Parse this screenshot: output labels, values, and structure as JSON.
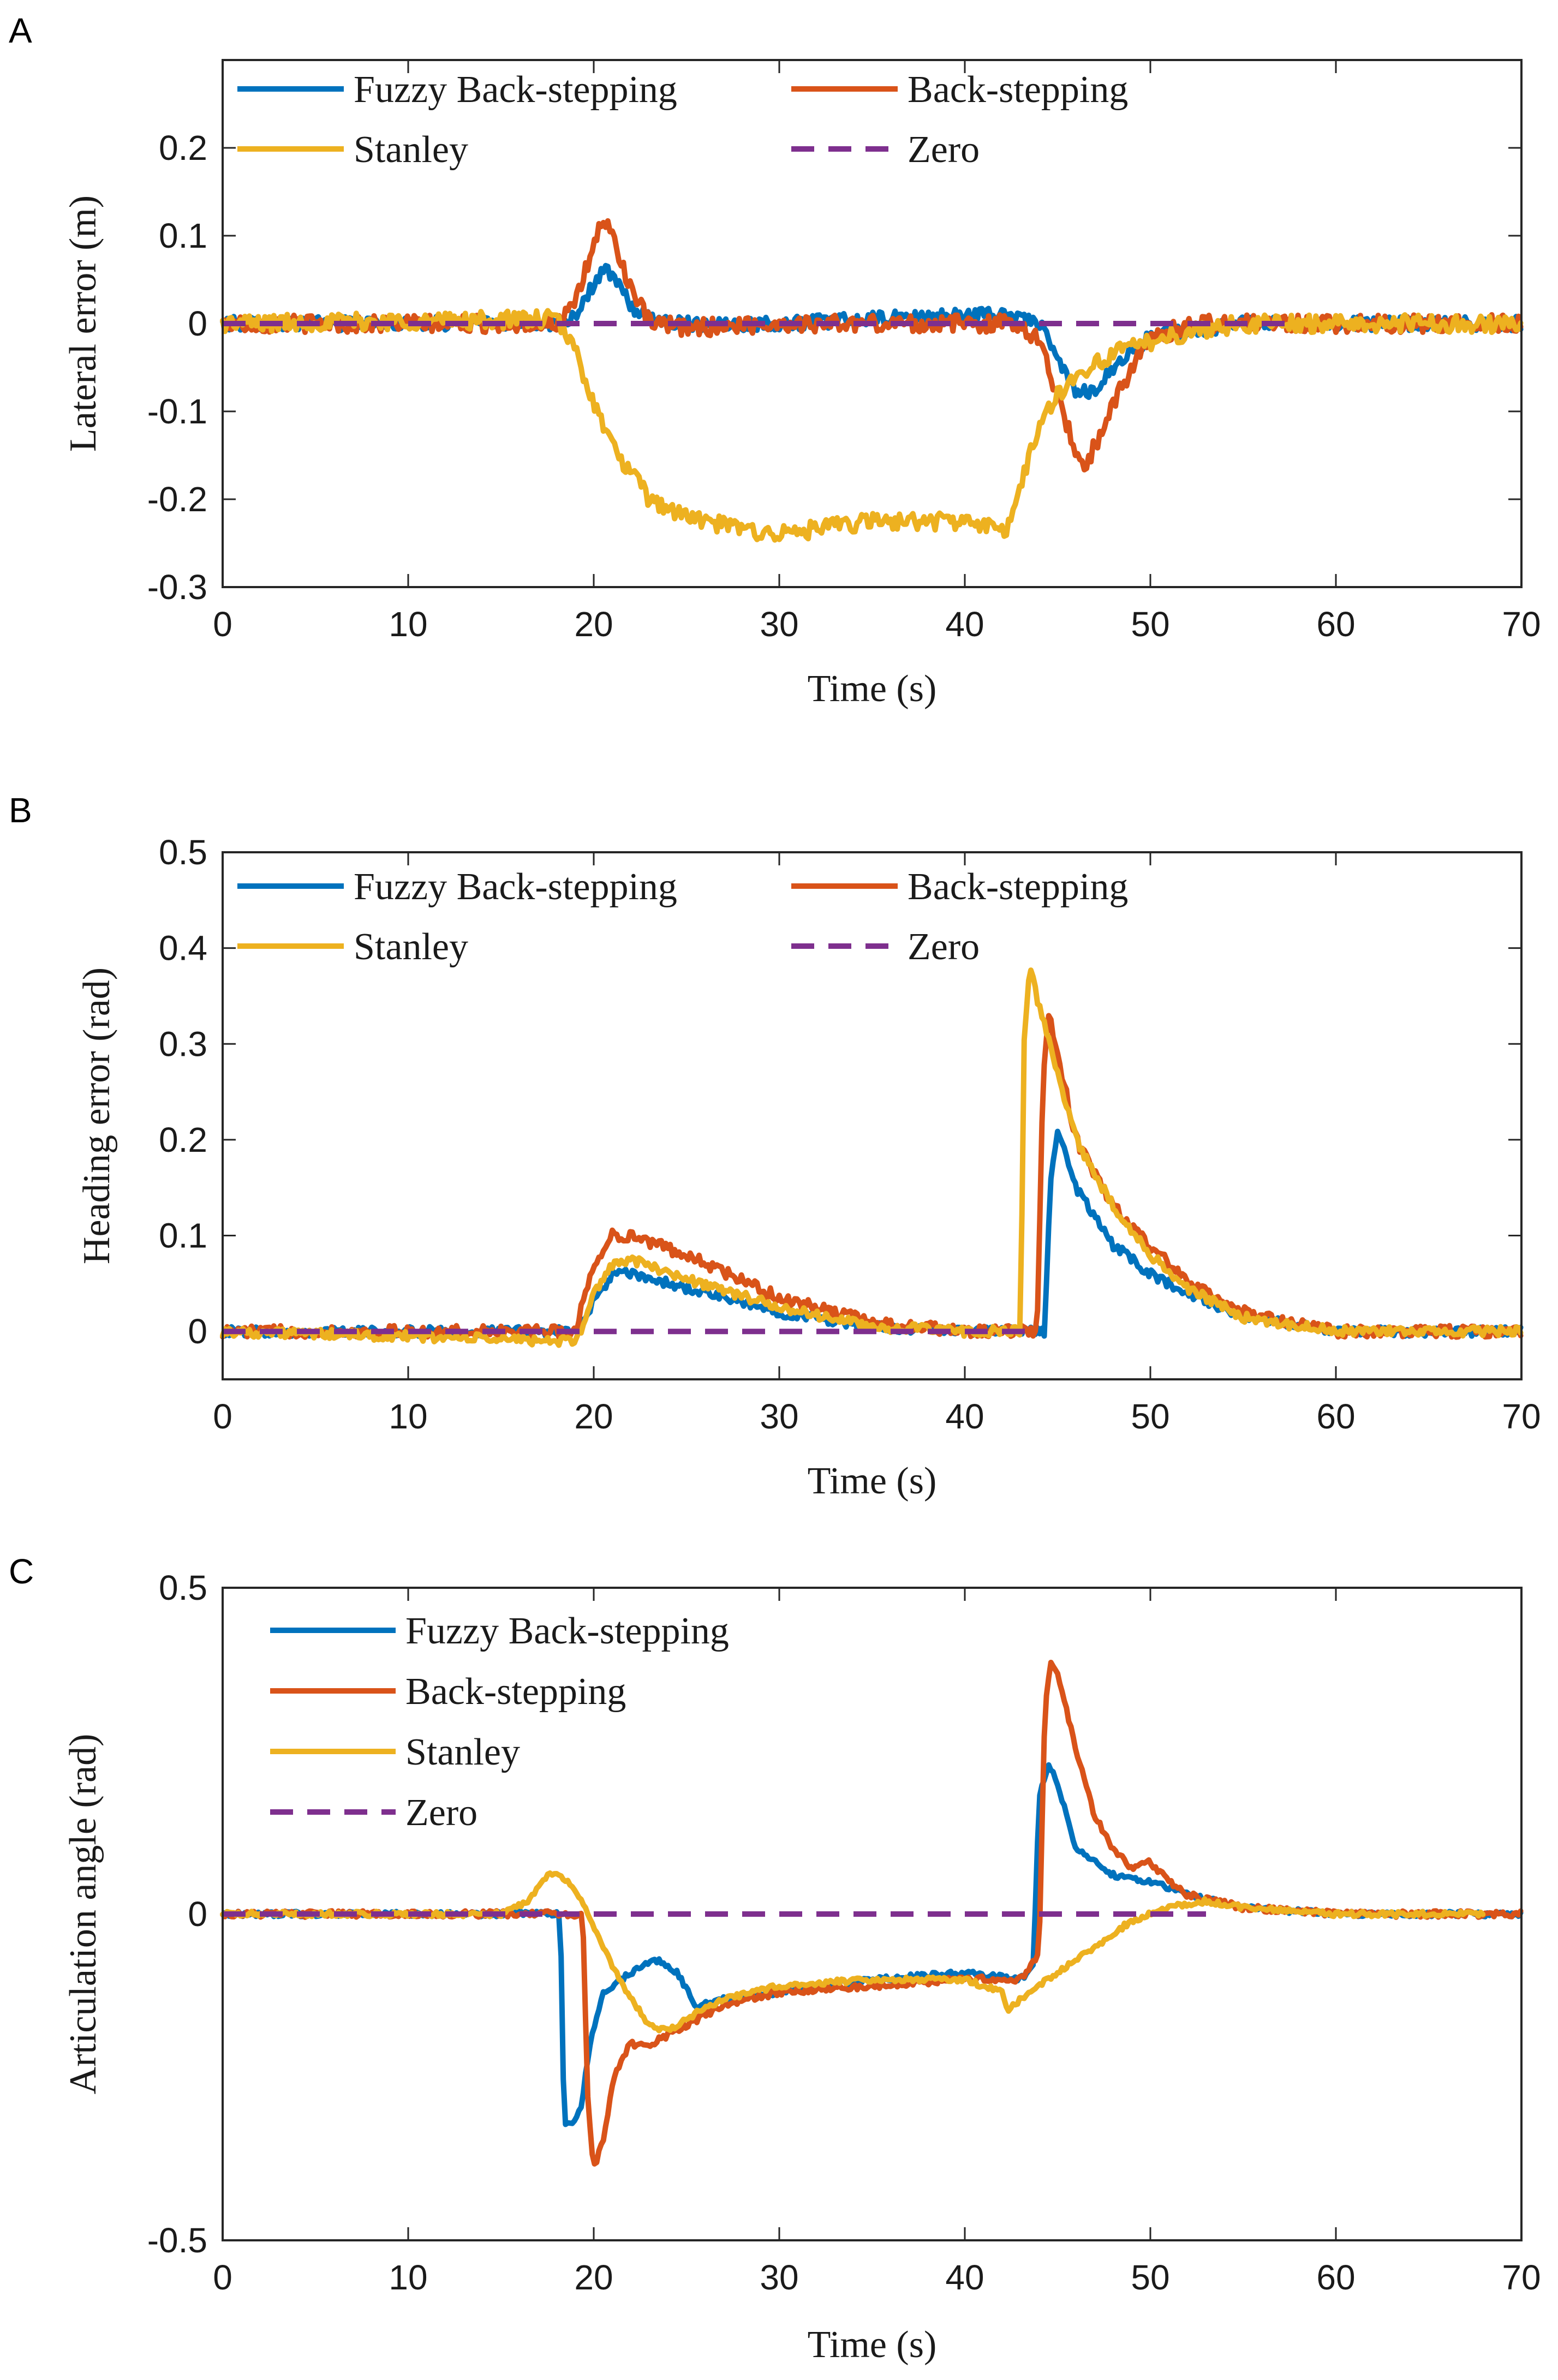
{
  "figure": {
    "panel_letters": [
      "A",
      "B",
      "C"
    ]
  },
  "colors": {
    "fuzzy": "#0072BD",
    "back": "#D95319",
    "stanley": "#EDB120",
    "zero": "#7E2F8E"
  },
  "chart_data": [
    {
      "type": "line",
      "panel": "A",
      "title": "",
      "xlabel": "Time (s)",
      "ylabel": "Lateral error (m)",
      "xlim": [
        0,
        70
      ],
      "ylim": [
        -0.3,
        0.3
      ],
      "xticks": [
        0,
        10,
        20,
        30,
        40,
        50,
        60,
        70
      ],
      "xtick_labels": [
        "0",
        "10",
        "20",
        "30",
        "40",
        "50",
        "60",
        "70"
      ],
      "yticks": [
        -0.3,
        -0.2,
        -0.1,
        0,
        0.1,
        0.2
      ],
      "ytick_labels": [
        "-0.3",
        "-0.2",
        "-0.1",
        "0",
        "0.1",
        "0.2"
      ],
      "legend_position": "top, two columns",
      "legend_columns": 2,
      "series": [
        {
          "name": "Fuzzy Back-stepping",
          "color_key": "fuzzy",
          "style": "solid",
          "noise": 0.008,
          "x": [
            0,
            18,
            19,
            20,
            20.5,
            21,
            22,
            23,
            25,
            30,
            35,
            40,
            43,
            44,
            45,
            46,
            47,
            48,
            50,
            55,
            60,
            65,
            70
          ],
          "y": [
            0,
            0,
            0.01,
            0.045,
            0.06,
            0.055,
            0.02,
            0.005,
            0,
            0,
            0.005,
            0.01,
            0.01,
            0.0,
            -0.04,
            -0.08,
            -0.075,
            -0.05,
            -0.015,
            0,
            0,
            0,
            0
          ]
        },
        {
          "name": "Back-stepping",
          "color_key": "back",
          "style": "solid",
          "noise": 0.01,
          "x": [
            0,
            18,
            19,
            20,
            20.5,
            21,
            22,
            23,
            25,
            30,
            35,
            40,
            43,
            44,
            45,
            46,
            46.5,
            47,
            48,
            49,
            50,
            52,
            55,
            60,
            65,
            70
          ],
          "y": [
            0,
            0,
            0.02,
            0.09,
            0.12,
            0.1,
            0.04,
            0.0,
            -0.005,
            0,
            0,
            0,
            0,
            -0.02,
            -0.08,
            -0.15,
            -0.16,
            -0.14,
            -0.09,
            -0.05,
            -0.02,
            0,
            0,
            0,
            0,
            0
          ]
        },
        {
          "name": "Stanley",
          "color_key": "stanley",
          "style": "solid",
          "noise": 0.01,
          "x": [
            0,
            18,
            19,
            20,
            21,
            22,
            23,
            25,
            27,
            30,
            35,
            40,
            42,
            42.5,
            43,
            44,
            45,
            46,
            47,
            48,
            50,
            52,
            55,
            60,
            65,
            70
          ],
          "y": [
            0,
            0.005,
            -0.03,
            -0.09,
            -0.14,
            -0.17,
            -0.2,
            -0.22,
            -0.23,
            -0.24,
            -0.225,
            -0.225,
            -0.235,
            -0.23,
            -0.18,
            -0.12,
            -0.08,
            -0.06,
            -0.045,
            -0.035,
            -0.02,
            -0.01,
            0,
            0,
            0,
            0
          ]
        },
        {
          "name": "Zero",
          "color_key": "zero",
          "style": "dashed",
          "noise": 0,
          "x": [
            0,
            58
          ],
          "y": [
            0,
            0
          ]
        }
      ]
    },
    {
      "type": "line",
      "panel": "B",
      "title": "",
      "xlabel": "Time (s)",
      "ylabel": "Heading error (rad)",
      "xlim": [
        0,
        70
      ],
      "ylim": [
        -0.05,
        0.5
      ],
      "xticks": [
        0,
        10,
        20,
        30,
        40,
        50,
        60,
        70
      ],
      "xtick_labels": [
        "0",
        "10",
        "20",
        "30",
        "40",
        "50",
        "60",
        "70"
      ],
      "yticks": [
        0,
        0.1,
        0.2,
        0.3,
        0.4,
        0.5
      ],
      "ytick_labels": [
        "0",
        "0.1",
        "0.2",
        "0.3",
        "0.4",
        "0.5"
      ],
      "legend_position": "top, two columns",
      "legend_columns": 2,
      "series": [
        {
          "name": "Fuzzy Back-stepping",
          "color_key": "fuzzy",
          "style": "solid",
          "noise": 0.005,
          "x": [
            0,
            19,
            20,
            21,
            22,
            25,
            30,
            35,
            40,
            44.3,
            44.6,
            45,
            46,
            48,
            50,
            52,
            55,
            60,
            65,
            70
          ],
          "y": [
            0,
            0,
            0.03,
            0.06,
            0.06,
            0.045,
            0.02,
            0.005,
            0,
            0,
            0.15,
            0.21,
            0.15,
            0.09,
            0.06,
            0.04,
            0.015,
            0,
            0,
            0
          ]
        },
        {
          "name": "Back-stepping",
          "color_key": "back",
          "style": "solid",
          "noise": 0.006,
          "x": [
            0,
            19,
            20,
            21,
            22,
            25,
            30,
            35,
            40,
            43.9,
            44.2,
            44.5,
            45,
            46,
            48,
            50,
            52,
            55,
            60,
            65,
            70
          ],
          "y": [
            0,
            0,
            0.07,
            0.1,
            0.1,
            0.08,
            0.035,
            0.01,
            0,
            0,
            0.25,
            0.335,
            0.29,
            0.2,
            0.13,
            0.09,
            0.05,
            0.02,
            0,
            0,
            0
          ]
        },
        {
          "name": "Stanley",
          "color_key": "stanley",
          "style": "solid",
          "noise": 0.005,
          "x": [
            0,
            18.5,
            19,
            20,
            21,
            22,
            25,
            30,
            35,
            40,
            43,
            43.2,
            43.5,
            44,
            45,
            46,
            48,
            50,
            52,
            55,
            60,
            65,
            70
          ],
          "y": [
            0,
            -0.01,
            -0.015,
            0.04,
            0.07,
            0.075,
            0.055,
            0.025,
            0.005,
            0,
            0,
            0.3,
            0.38,
            0.34,
            0.27,
            0.2,
            0.13,
            0.08,
            0.045,
            0.015,
            0,
            0,
            0
          ]
        },
        {
          "name": "Zero",
          "color_key": "zero",
          "style": "dashed",
          "noise": 0,
          "x": [
            0,
            44
          ],
          "y": [
            0,
            0
          ]
        }
      ]
    },
    {
      "type": "line",
      "panel": "C",
      "title": "",
      "xlabel": "Time (s)",
      "ylabel": "Articulation angle (rad)",
      "xlim": [
        0,
        70
      ],
      "ylim": [
        -0.5,
        0.5
      ],
      "xticks": [
        0,
        10,
        20,
        30,
        40,
        50,
        60,
        70
      ],
      "xtick_labels": [
        "0",
        "10",
        "20",
        "30",
        "40",
        "50",
        "60",
        "70"
      ],
      "yticks": [
        -0.5,
        0,
        0.5
      ],
      "ytick_labels": [
        "-0.5",
        "0",
        "0.5"
      ],
      "legend_position": "top-left, one column",
      "legend_columns": 1,
      "series": [
        {
          "name": "Fuzzy Back-stepping",
          "color_key": "fuzzy",
          "style": "solid",
          "noise": 0.004,
          "x": [
            0,
            18.2,
            18.4,
            18.8,
            19.3,
            19.8,
            20.5,
            21.5,
            22.5,
            23.5,
            24.5,
            25.5,
            27,
            30,
            35,
            40,
            43,
            43.7,
            44,
            44.5,
            45,
            46,
            48,
            50,
            52,
            55,
            60,
            65,
            70
          ],
          "y": [
            0,
            0,
            -0.32,
            -0.32,
            -0.3,
            -0.2,
            -0.12,
            -0.1,
            -0.08,
            -0.07,
            -0.09,
            -0.14,
            -0.13,
            -0.12,
            -0.1,
            -0.09,
            -0.1,
            -0.08,
            0.18,
            0.23,
            0.2,
            0.1,
            0.06,
            0.05,
            0.03,
            0.01,
            0,
            0,
            0
          ]
        },
        {
          "name": "Back-stepping",
          "color_key": "back",
          "style": "solid",
          "noise": 0.005,
          "x": [
            0,
            19.4,
            19.7,
            20,
            20.5,
            21,
            21.5,
            22,
            23,
            25,
            27,
            30,
            35,
            40,
            43,
            44,
            44.3,
            44.6,
            45,
            46,
            47,
            48,
            49,
            50,
            51,
            52,
            55,
            60,
            65,
            70
          ],
          "y": [
            0,
            0,
            -0.3,
            -0.39,
            -0.35,
            -0.26,
            -0.22,
            -0.2,
            -0.2,
            -0.17,
            -0.14,
            -0.12,
            -0.11,
            -0.1,
            -0.1,
            -0.06,
            0.3,
            0.39,
            0.37,
            0.25,
            0.15,
            0.1,
            0.07,
            0.08,
            0.05,
            0.03,
            0.01,
            0,
            0,
            0
          ]
        },
        {
          "name": "Stanley",
          "color_key": "stanley",
          "style": "solid",
          "noise": 0.004,
          "x": [
            0,
            15,
            16.5,
            17.5,
            18,
            19,
            20,
            21,
            22,
            23,
            24,
            25,
            27,
            30,
            35,
            40,
            42,
            42.3,
            43,
            45,
            47,
            49,
            51,
            53,
            55,
            60,
            65,
            68
          ],
          "y": [
            0,
            0,
            0.02,
            0.06,
            0.065,
            0.04,
            -0.02,
            -0.08,
            -0.13,
            -0.17,
            -0.18,
            -0.16,
            -0.13,
            -0.11,
            -0.1,
            -0.1,
            -0.12,
            -0.15,
            -0.13,
            -0.09,
            -0.05,
            -0.01,
            0.01,
            0.02,
            0.01,
            0,
            0,
            0
          ]
        },
        {
          "name": "Zero",
          "color_key": "zero",
          "style": "dashed",
          "noise": 0,
          "x": [
            0,
            53
          ],
          "y": [
            0,
            0
          ]
        }
      ]
    }
  ]
}
